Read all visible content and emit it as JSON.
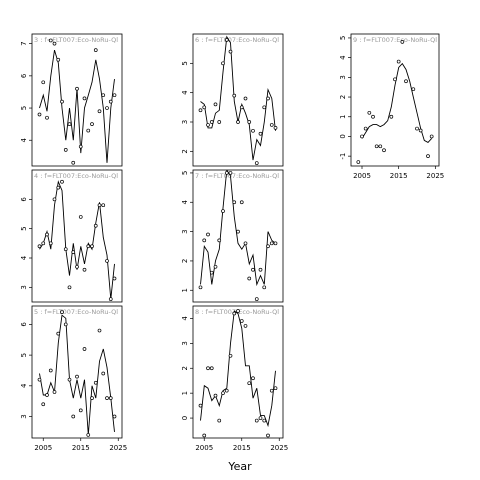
{
  "chart_data": {
    "type": "line",
    "xlabel": "Year",
    "panels": [
      {
        "title": "3 : f=FLT007:Eco-NoRu-Ql",
        "xlim": [
          2002,
          2026
        ],
        "ylim": [
          3.2,
          7.3
        ],
        "yticks": [
          4,
          5,
          6,
          7
        ],
        "xticks": [],
        "points": {
          "x": [
            2004,
            2005,
            2006,
            2007,
            2008,
            2009,
            2010,
            2011,
            2012,
            2013,
            2014,
            2015,
            2016,
            2017,
            2018,
            2019,
            2020,
            2021,
            2022,
            2023,
            2024
          ],
          "y": [
            4.8,
            5.8,
            4.7,
            7.1,
            7.0,
            6.5,
            5.2,
            3.7,
            4.5,
            3.3,
            5.6,
            3.8,
            5.3,
            4.3,
            4.5,
            6.8,
            4.9,
            5.4,
            5.0,
            5.2,
            5.4
          ]
        },
        "line": {
          "x": [
            2004,
            2005,
            2006,
            2007,
            2008,
            2009,
            2010,
            2011,
            2012,
            2013,
            2014,
            2015,
            2016,
            2017,
            2018,
            2019,
            2020,
            2021,
            2022,
            2023,
            2024
          ],
          "y": [
            5.0,
            5.4,
            4.9,
            6.0,
            6.8,
            6.4,
            5.0,
            4.0,
            5.0,
            4.0,
            5.6,
            3.6,
            5.0,
            5.4,
            5.8,
            6.5,
            5.9,
            5.0,
            3.3,
            5.0,
            5.9
          ]
        }
      },
      {
        "title": "6 : f=FLT007:Eco-NoRu-Ql",
        "xlim": [
          2002,
          2026
        ],
        "ylim": [
          1.5,
          6.0
        ],
        "yticks": [
          2,
          3,
          4,
          5
        ],
        "xticks": [],
        "points": {
          "x": [
            2004,
            2005,
            2006,
            2007,
            2008,
            2009,
            2010,
            2011,
            2012,
            2013,
            2014,
            2015,
            2016,
            2017,
            2018,
            2019,
            2020,
            2021,
            2022,
            2023,
            2024
          ],
          "y": [
            3.4,
            3.5,
            2.9,
            3.0,
            3.6,
            3.0,
            5.0,
            5.8,
            5.4,
            3.9,
            3.0,
            3.5,
            3.8,
            3.0,
            2.7,
            1.6,
            2.6,
            3.5,
            3.8,
            2.9,
            2.8
          ]
        },
        "line": {
          "x": [
            2004,
            2005,
            2006,
            2007,
            2008,
            2009,
            2010,
            2011,
            2012,
            2013,
            2014,
            2015,
            2016,
            2017,
            2018,
            2019,
            2020,
            2021,
            2022,
            2023,
            2024
          ],
          "y": [
            3.7,
            3.6,
            2.8,
            2.8,
            3.3,
            3.4,
            4.7,
            5.9,
            5.7,
            3.7,
            3.0,
            3.6,
            3.3,
            2.9,
            1.7,
            2.4,
            2.2,
            3.0,
            4.1,
            3.8,
            2.7
          ]
        }
      },
      {
        "title": "9 : f=FLT007:Eco-NoRu-Ql",
        "xlim": [
          2002,
          2026
        ],
        "ylim": [
          -1.5,
          5.2
        ],
        "yticks": [
          -1,
          0,
          1,
          2,
          3,
          4,
          5
        ],
        "xticks": [
          2005,
          2015,
          2025
        ],
        "points": {
          "x": [
            2004,
            2005,
            2006,
            2007,
            2008,
            2009,
            2010,
            2011,
            2013,
            2014,
            2015,
            2016,
            2017,
            2019,
            2020,
            2021,
            2023,
            2024
          ],
          "y": [
            -1.3,
            0.0,
            0.4,
            1.2,
            1.0,
            -0.5,
            -0.5,
            -0.7,
            1.0,
            2.9,
            3.8,
            4.8,
            2.8,
            2.4,
            0.4,
            0.3,
            -1.0,
            0.0
          ]
        },
        "line": {
          "x": [
            2005,
            2006,
            2007,
            2008,
            2009,
            2010,
            2011,
            2012,
            2013,
            2014,
            2015,
            2016,
            2017,
            2018,
            2019,
            2020,
            2021,
            2022,
            2023,
            2024
          ],
          "y": [
            -0.1,
            0.2,
            0.5,
            0.6,
            0.6,
            0.5,
            0.6,
            0.8,
            1.5,
            2.6,
            3.5,
            3.7,
            3.4,
            2.8,
            2.0,
            1.2,
            0.4,
            -0.2,
            -0.3,
            -0.1
          ]
        }
      },
      {
        "title": "4 : f=FLT007:Eco-NoRu-Ql",
        "xlim": [
          2002,
          2026
        ],
        "ylim": [
          2.5,
          7.0
        ],
        "yticks": [
          3,
          4,
          5,
          6
        ],
        "xticks": [],
        "points": {
          "x": [
            2004,
            2005,
            2006,
            2007,
            2008,
            2009,
            2010,
            2011,
            2012,
            2013,
            2014,
            2015,
            2016,
            2017,
            2018,
            2019,
            2020,
            2021,
            2022,
            2023,
            2024
          ],
          "y": [
            4.4,
            4.5,
            4.8,
            4.5,
            6.0,
            6.4,
            6.6,
            4.3,
            3.0,
            4.2,
            3.7,
            5.4,
            3.6,
            4.4,
            4.4,
            5.1,
            5.8,
            5.8,
            3.9,
            2.6,
            3.3
          ]
        },
        "line": {
          "x": [
            2004,
            2005,
            2006,
            2007,
            2008,
            2009,
            2010,
            2011,
            2012,
            2013,
            2014,
            2015,
            2016,
            2017,
            2018,
            2019,
            2020,
            2021,
            2022,
            2023,
            2024
          ],
          "y": [
            4.3,
            4.5,
            4.9,
            4.3,
            5.8,
            6.6,
            6.3,
            4.3,
            3.4,
            4.5,
            3.6,
            4.4,
            3.8,
            4.5,
            4.3,
            5.2,
            5.9,
            4.7,
            4.1,
            2.6,
            3.8
          ]
        }
      },
      {
        "title": "7 : f=FLT007:Eco-NoRu-Ql",
        "xlim": [
          2002,
          2026
        ],
        "ylim": [
          0.6,
          5.1
        ],
        "yticks": [
          1,
          2,
          3,
          4,
          5
        ],
        "xticks": [],
        "points": {
          "x": [
            2004,
            2005,
            2006,
            2007,
            2008,
            2009,
            2010,
            2011,
            2012,
            2013,
            2014,
            2015,
            2016,
            2017,
            2018,
            2019,
            2020,
            2021,
            2022,
            2023,
            2024
          ],
          "y": [
            1.1,
            2.7,
            2.9,
            1.6,
            1.8,
            2.7,
            3.7,
            5.0,
            5.0,
            4.0,
            3.0,
            4.0,
            2.6,
            1.4,
            1.7,
            0.7,
            1.7,
            1.1,
            2.5,
            2.6,
            2.6
          ]
        },
        "line": {
          "x": [
            2004,
            2005,
            2006,
            2007,
            2008,
            2009,
            2010,
            2011,
            2012,
            2013,
            2014,
            2015,
            2016,
            2017,
            2018,
            2019,
            2020,
            2021,
            2022,
            2023,
            2024
          ],
          "y": [
            1.2,
            2.5,
            2.3,
            1.2,
            2.0,
            2.4,
            3.8,
            5.1,
            4.9,
            3.5,
            2.6,
            2.4,
            2.6,
            1.9,
            2.2,
            1.2,
            1.5,
            1.2,
            3.0,
            2.7,
            2.6
          ]
        }
      },
      {
        "title": "5 : f=FLT007:Eco-NoRu-Ql",
        "xlim": [
          2002,
          2026
        ],
        "ylim": [
          2.3,
          6.6
        ],
        "yticks": [
          3,
          4,
          5,
          6
        ],
        "xticks": [
          2005,
          2015,
          2025
        ],
        "points": {
          "x": [
            2004,
            2005,
            2006,
            2007,
            2008,
            2009,
            2010,
            2011,
            2012,
            2013,
            2014,
            2015,
            2016,
            2017,
            2018,
            2019,
            2020,
            2021,
            2022,
            2023,
            2024
          ],
          "y": [
            4.2,
            3.4,
            3.7,
            4.5,
            3.8,
            5.7,
            6.4,
            6.0,
            4.2,
            3.0,
            4.3,
            3.2,
            5.2,
            2.4,
            3.6,
            4.1,
            5.8,
            4.4,
            3.6,
            3.6,
            3.0
          ]
        },
        "line": {
          "x": [
            2004,
            2005,
            2006,
            2007,
            2008,
            2009,
            2010,
            2011,
            2012,
            2013,
            2014,
            2015,
            2016,
            2017,
            2018,
            2019,
            2020,
            2021,
            2022,
            2023,
            2024
          ],
          "y": [
            4.4,
            3.7,
            3.7,
            4.1,
            3.8,
            5.4,
            6.3,
            6.2,
            4.2,
            3.6,
            4.2,
            3.6,
            4.2,
            2.4,
            4.0,
            3.6,
            4.8,
            5.2,
            4.6,
            3.6,
            2.5
          ]
        }
      },
      {
        "title": "8 : f=FLT007:Eco-NoRu-Ql",
        "xlim": [
          2002,
          2026
        ],
        "ylim": [
          -0.8,
          4.5
        ],
        "yticks": [
          0,
          1,
          2,
          3,
          4
        ],
        "xticks": [
          2005,
          2015,
          2025
        ],
        "points": {
          "x": [
            2004,
            2005,
            2006,
            2007,
            2008,
            2009,
            2010,
            2011,
            2012,
            2013,
            2014,
            2015,
            2016,
            2017,
            2018,
            2019,
            2020,
            2021,
            2022,
            2023,
            2024
          ],
          "y": [
            0.5,
            -0.7,
            2.0,
            2.0,
            0.9,
            -0.1,
            1.0,
            1.1,
            2.5,
            4.2,
            4.3,
            3.9,
            3.7,
            1.4,
            1.6,
            -0.1,
            0.0,
            -0.1,
            -0.7,
            1.1,
            1.2
          ]
        },
        "line": {
          "x": [
            2004,
            2005,
            2006,
            2007,
            2008,
            2009,
            2010,
            2011,
            2012,
            2013,
            2014,
            2015,
            2016,
            2017,
            2018,
            2019,
            2020,
            2021,
            2022,
            2023,
            2024
          ],
          "y": [
            -0.1,
            1.3,
            1.2,
            0.7,
            0.9,
            0.5,
            1.1,
            1.2,
            3.0,
            4.3,
            4.2,
            3.6,
            2.1,
            2.1,
            0.8,
            1.2,
            0.1,
            0.1,
            -0.3,
            0.5,
            1.9
          ]
        }
      }
    ]
  }
}
